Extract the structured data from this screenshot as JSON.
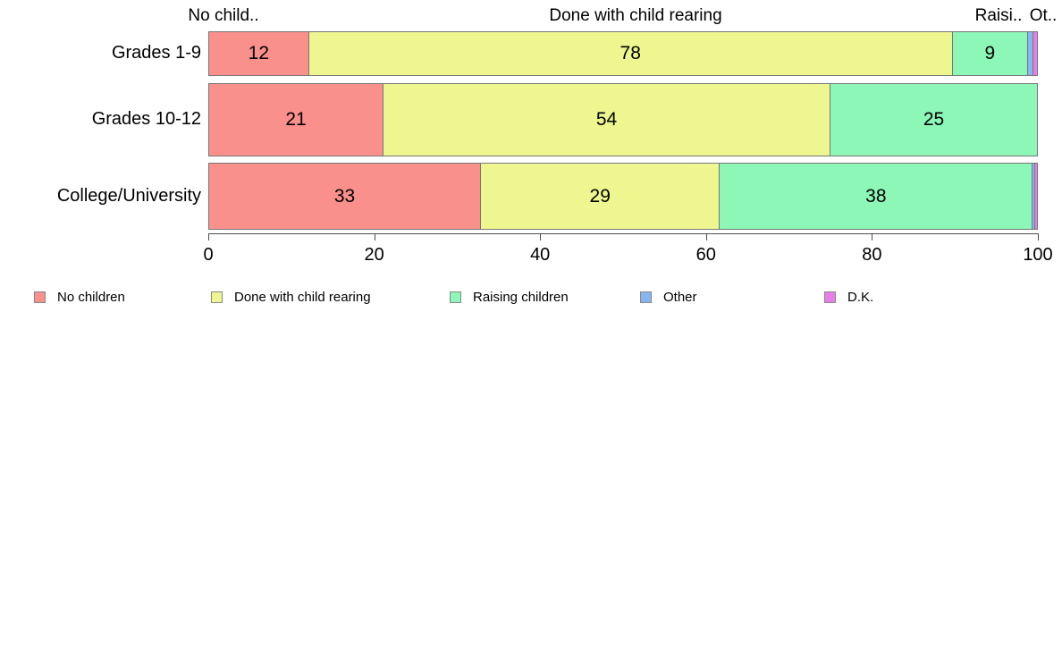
{
  "chart_data": {
    "type": "bar",
    "orientation": "horizontal",
    "stacked": true,
    "title": "",
    "xlabel": "",
    "ylabel": "",
    "xlim": [
      0,
      100
    ],
    "grid": false,
    "legend_position": "bottom",
    "categories": [
      "Grades 1-9",
      "Grades 10-12",
      "College/University"
    ],
    "series": [
      {
        "name": "No children",
        "color": "#F9908C",
        "values": [
          12,
          21,
          33
        ],
        "labels": [
          "12",
          "21",
          "33"
        ]
      },
      {
        "name": "Done with child rearing",
        "color": "#EDF68F",
        "values": [
          78,
          54,
          29
        ],
        "labels": [
          "78",
          "54",
          "29"
        ]
      },
      {
        "name": "Raising children",
        "color": "#8DF7B8",
        "values": [
          9,
          25,
          38
        ],
        "labels": [
          "9",
          "25",
          "38"
        ]
      },
      {
        "name": "Other",
        "color": "#86B6F2",
        "values": [
          0.6,
          0,
          0.2
        ],
        "labels": [
          "",
          "",
          ""
        ]
      },
      {
        "name": "D.K.",
        "color": "#E87FE8",
        "values": [
          0.4,
          0,
          0.2
        ],
        "labels": [
          "",
          "",
          ""
        ]
      }
    ],
    "segment_header_labels": [
      "No child..",
      "Done with child rearing",
      "Raisi..",
      "Ot.."
    ],
    "x_ticks": [
      0,
      20,
      40,
      60,
      80,
      100
    ],
    "legend": [
      "No children",
      "Done with child rearing",
      "Raising children",
      "Other",
      "D.K."
    ]
  }
}
